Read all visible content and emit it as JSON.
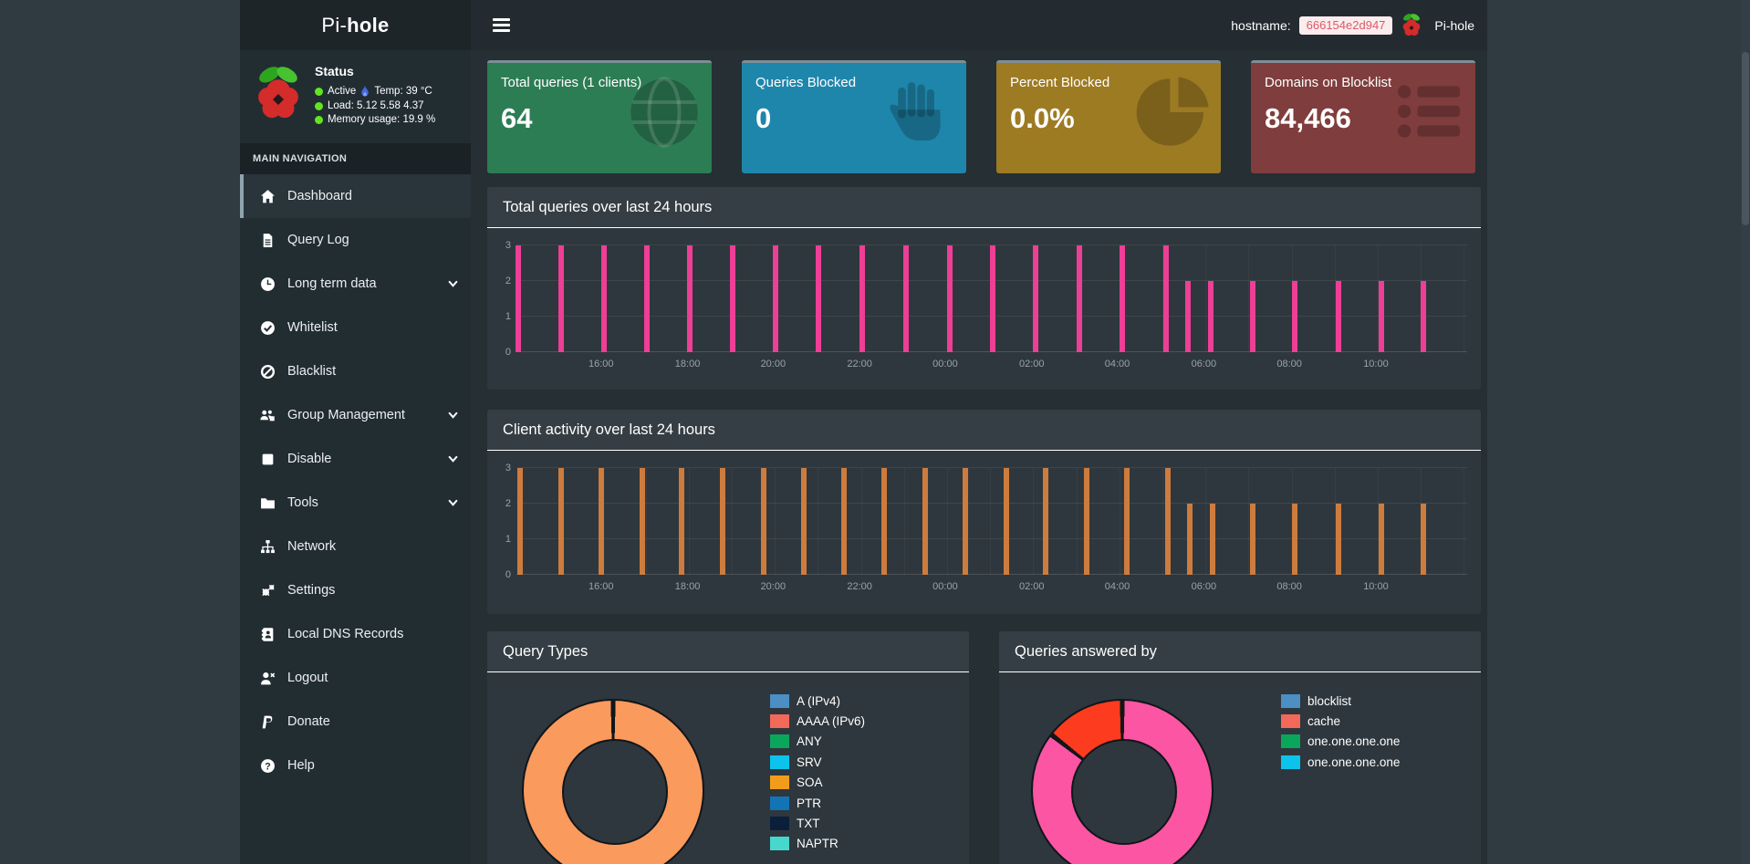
{
  "header": {
    "brand_pi": "Pi-",
    "brand_hole": "hole",
    "hostname_label": "hostname:",
    "hostname_value": "666154e2d947",
    "app_name": "Pi-hole"
  },
  "sidebar": {
    "status": {
      "title": "Status",
      "active": "Active",
      "temp": "Temp: 39 °C",
      "load": "Load:  5.12  5.58  4.37",
      "memory": "Memory usage:  19.9 %"
    },
    "section_label": "MAIN NAVIGATION",
    "items": [
      {
        "label": "Dashboard",
        "icon": "home-icon",
        "active": true
      },
      {
        "label": "Query Log",
        "icon": "file-icon"
      },
      {
        "label": "Long term data",
        "icon": "clock-icon",
        "expandable": true
      },
      {
        "label": "Whitelist",
        "icon": "check-circle-icon"
      },
      {
        "label": "Blacklist",
        "icon": "ban-icon"
      },
      {
        "label": "Group Management",
        "icon": "users-gear-icon",
        "expandable": true
      },
      {
        "label": "Disable",
        "icon": "stop-icon",
        "expandable": true
      },
      {
        "label": "Tools",
        "icon": "folder-icon",
        "expandable": true
      },
      {
        "label": "Network",
        "icon": "network-icon"
      },
      {
        "label": "Settings",
        "icon": "gears-icon"
      },
      {
        "label": "Local DNS Records",
        "icon": "address-book-icon"
      },
      {
        "label": "Logout",
        "icon": "logout-icon"
      },
      {
        "label": "Donate",
        "icon": "paypal-icon"
      },
      {
        "label": "Help",
        "icon": "help-icon"
      }
    ]
  },
  "cards": [
    {
      "title": "Total queries (1 clients)",
      "value": "64",
      "bg": "#2c7d54",
      "icon": "globe-icon"
    },
    {
      "title": "Queries Blocked",
      "value": "0",
      "bg": "#1f86ab",
      "icon": "hand-icon"
    },
    {
      "title": "Percent Blocked",
      "value": "0.0%",
      "bg": "#9d7b23",
      "icon": "pie-chart-icon"
    },
    {
      "title": "Domains on Blocklist",
      "value": "84,466",
      "bg": "#803d3d",
      "icon": "list-icon"
    }
  ],
  "chart_data": [
    {
      "type": "bar",
      "title": "Total queries over last 24 hours",
      "color": "#ee3e96",
      "ylim": [
        0,
        3
      ],
      "y_ticks": [
        0,
        1,
        2,
        3
      ],
      "grid_x_step_pct": 4.53,
      "x_tick_labels": [
        "16:00",
        "18:00",
        "20:00",
        "22:00",
        "00:00",
        "02:00",
        "04:00",
        "06:00",
        "08:00",
        "10:00"
      ],
      "x_tick_percents": [
        8.9,
        18.0,
        27.0,
        36.1,
        45.1,
        54.2,
        63.2,
        72.3,
        81.3,
        90.4
      ],
      "bars": {
        "x_percents": [
          0.2,
          4.7,
          9.2,
          13.7,
          18.2,
          22.7,
          27.3,
          31.8,
          36.4,
          41.0,
          45.6,
          50.1,
          54.6,
          59.2,
          63.7,
          68.3,
          70.6,
          73.0,
          77.4,
          81.9,
          86.5,
          91.0,
          95.4
        ],
        "values": [
          3,
          3,
          3,
          3,
          3,
          3,
          3,
          3,
          3,
          3,
          3,
          3,
          3,
          3,
          3,
          3,
          2,
          2,
          2,
          2,
          2,
          2,
          2
        ]
      }
    },
    {
      "type": "bar",
      "title": "Client activity over last 24 hours",
      "color": "#cd7c3e",
      "ylim": [
        0,
        3
      ],
      "y_ticks": [
        0,
        1,
        2,
        3
      ],
      "grid_x_step_pct": 4.53,
      "x_tick_labels": [
        "16:00",
        "18:00",
        "20:00",
        "22:00",
        "00:00",
        "02:00",
        "04:00",
        "06:00",
        "08:00",
        "10:00"
      ],
      "x_tick_percents": [
        8.9,
        18.0,
        27.0,
        36.1,
        45.1,
        54.2,
        63.2,
        72.3,
        81.3,
        90.4
      ],
      "bars": {
        "x_percents": [
          0.4,
          4.7,
          8.9,
          13.2,
          17.4,
          21.7,
          26.0,
          30.2,
          34.5,
          38.7,
          43.0,
          47.2,
          51.5,
          55.7,
          60.0,
          64.2,
          68.5,
          70.8,
          73.2,
          77.4,
          81.9,
          86.5,
          91.0,
          95.4
        ],
        "values": [
          3,
          3,
          3,
          3,
          3,
          3,
          3,
          3,
          3,
          3,
          3,
          3,
          3,
          3,
          3,
          3,
          3,
          2,
          2,
          2,
          2,
          2,
          2,
          2
        ]
      }
    },
    {
      "type": "pie",
      "title": "Query Types",
      "legend_position": "right",
      "legend": [
        {
          "label": "A (IPv4)",
          "color": "#4b8fc4"
        },
        {
          "label": "AAAA (IPv6)",
          "color": "#f2695a"
        },
        {
          "label": "ANY",
          "color": "#0aa65c"
        },
        {
          "label": "SRV",
          "color": "#0cc3ec"
        },
        {
          "label": "SOA",
          "color": "#f09d1b"
        },
        {
          "label": "PTR",
          "color": "#1374b5"
        },
        {
          "label": "TXT",
          "color": "#0a1f3c"
        },
        {
          "label": "NAPTR",
          "color": "#46d8cc"
        }
      ],
      "slices": [
        {
          "from": 0,
          "to": 360,
          "percent": 100,
          "color": "#fb9a5d"
        }
      ]
    },
    {
      "type": "pie",
      "title": "Queries answered by",
      "legend_position": "right",
      "legend": [
        {
          "label": "blocklist",
          "color": "#4b8fc4"
        },
        {
          "label": "cache",
          "color": "#f2695a"
        },
        {
          "label": "one.one.one.one",
          "color": "#0aa65c"
        },
        {
          "label": "one.one.one.one",
          "color": "#0cc3ec"
        }
      ],
      "slices": [
        {
          "from": 0,
          "to": 308,
          "percent": 85.6,
          "color": "#fc55a3"
        },
        {
          "from": 308,
          "to": 360,
          "percent": 14.4,
          "color": "#fd3b1e"
        }
      ]
    }
  ]
}
